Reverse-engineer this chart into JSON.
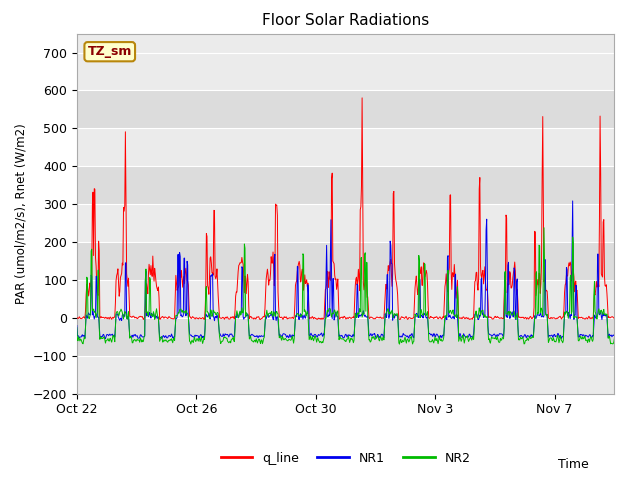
{
  "title": "Floor Solar Radiations",
  "xlabel": "Time",
  "ylabel": "PAR (umol/m2/s), Rnet (W/m2)",
  "ylim": [
    -200,
    750
  ],
  "yticks": [
    -200,
    -100,
    0,
    100,
    200,
    300,
    400,
    500,
    600,
    700
  ],
  "xtick_labels": [
    "Oct 22",
    "Oct 26",
    "Oct 30",
    "Nov 3",
    "Nov 7"
  ],
  "xtick_positions": [
    0,
    4,
    8,
    12,
    16
  ],
  "annotation_text": "TZ_sm",
  "annotation_color": "#8B0000",
  "annotation_bg": "#FFFFCC",
  "annotation_border": "#B8860B",
  "colors": {
    "q_line": "#FF0000",
    "NR1": "#0000EE",
    "NR2": "#00BB00"
  },
  "plot_bg_light": "#EBEBEB",
  "plot_bg_dark": "#DCDCDC",
  "grid_color": "#FFFFFF",
  "legend_labels": [
    "q_line",
    "NR1",
    "NR2"
  ]
}
